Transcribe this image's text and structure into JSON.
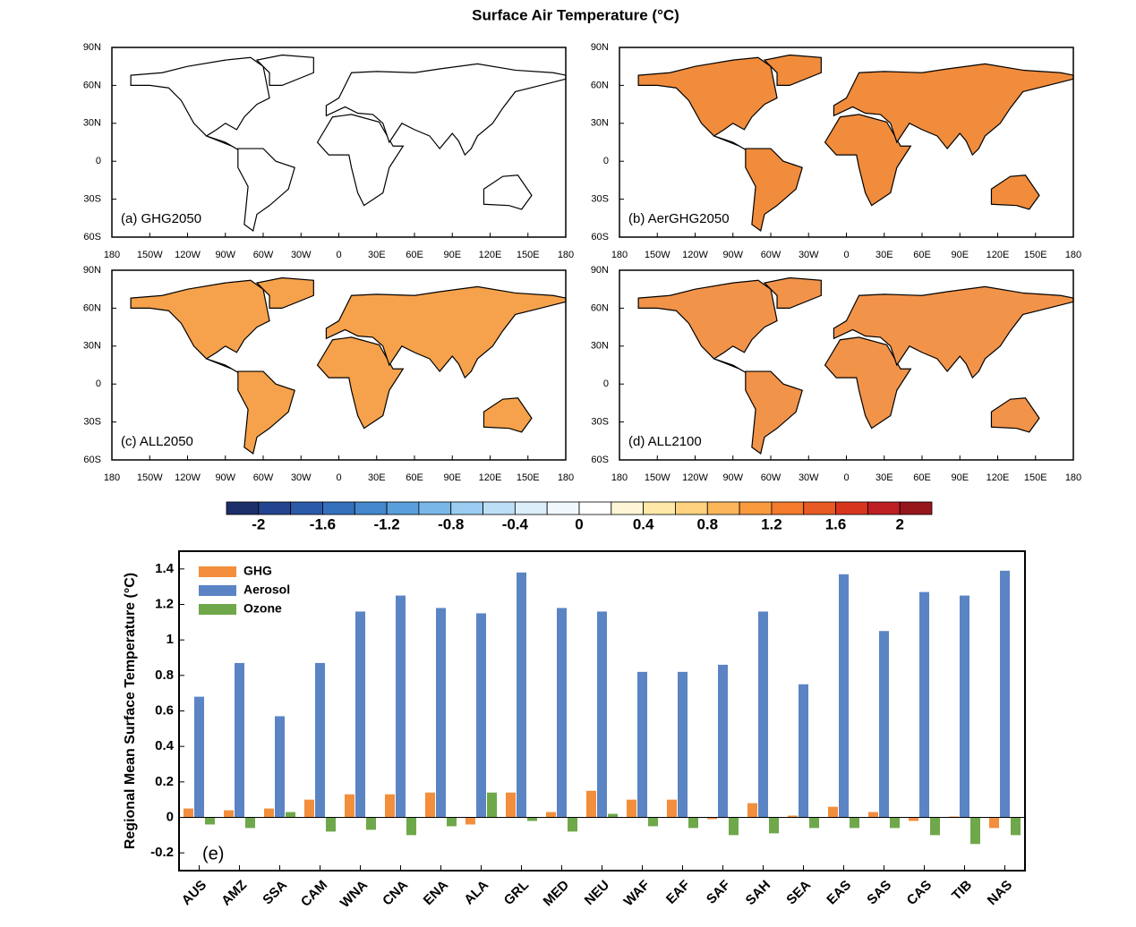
{
  "title": "Surface Air Temperature (°C)",
  "maps": {
    "lat_ticks": [
      "90N",
      "60N",
      "30N",
      "0",
      "30S",
      "60S"
    ],
    "lon_ticks": [
      "180",
      "150W",
      "120W",
      "90W",
      "60W",
      "30W",
      "0",
      "30E",
      "60E",
      "90E",
      "120E",
      "150E",
      "180"
    ],
    "panels": [
      {
        "label": "(a) GHG2050",
        "color": "#ffffff"
      },
      {
        "label": "(b) AerGHG2050",
        "color": "#f08c3c"
      },
      {
        "label": "(c) ALL2050",
        "color": "#f6a24c"
      },
      {
        "label": "(d) ALL2100",
        "color": "#f2934a"
      }
    ]
  },
  "colorbar": {
    "levels": [
      -2,
      -1.6,
      -1.2,
      -0.8,
      -0.4,
      0,
      0.4,
      0.8,
      1.2,
      1.6,
      2
    ],
    "colors": [
      "#1c2f6b",
      "#23458f",
      "#2b5aa8",
      "#3570bd",
      "#4487cc",
      "#5a9fdb",
      "#79b7e8",
      "#9acdf1",
      "#bcdff5",
      "#dbeefa",
      "#f0f8fd",
      "#ffffff",
      "#fff6d5",
      "#ffe8a8",
      "#fdd17e",
      "#fcb65a",
      "#f99a3e",
      "#f47a2c",
      "#e85a23",
      "#d8351f",
      "#bd1e22",
      "#96161c"
    ]
  },
  "chart_data": {
    "type": "bar",
    "ylabel": "Regional Mean Surface Temperature (°C)",
    "annotation": "(e)",
    "legend": "upper left",
    "categories": [
      "AUS",
      "AMZ",
      "SSA",
      "CAM",
      "WNA",
      "CNA",
      "ENA",
      "ALA",
      "GRL",
      "MED",
      "NEU",
      "WAF",
      "EAF",
      "SAF",
      "SAH",
      "SEA",
      "EAS",
      "SAS",
      "CAS",
      "TIB",
      "NAS"
    ],
    "series": [
      {
        "name": "GHG",
        "color": "#f28e3c",
        "values": [
          0.05,
          0.04,
          0.05,
          0.1,
          0.13,
          0.13,
          0.14,
          -0.04,
          0.14,
          0.03,
          0.15,
          0.1,
          0.1,
          -0.01,
          0.08,
          0.01,
          0.06,
          0.03,
          -0.02,
          0.005,
          -0.06
        ]
      },
      {
        "name": "Aerosol",
        "color": "#5b84c4",
        "values": [
          0.68,
          0.87,
          0.57,
          0.87,
          1.16,
          1.25,
          1.18,
          1.15,
          1.38,
          1.18,
          1.16,
          0.82,
          0.82,
          0.86,
          1.16,
          0.75,
          1.37,
          1.05,
          1.27,
          1.25,
          1.39
        ]
      },
      {
        "name": "Ozone",
        "color": "#6fa84a",
        "values": [
          -0.04,
          -0.06,
          0.03,
          -0.08,
          -0.07,
          -0.1,
          -0.05,
          0.14,
          -0.02,
          -0.08,
          0.02,
          -0.05,
          -0.06,
          -0.1,
          -0.09,
          -0.06,
          -0.06,
          -0.06,
          -0.1,
          -0.15,
          -0.1
        ]
      }
    ],
    "ylim": [
      -0.3,
      1.5
    ],
    "yticks": [
      -0.2,
      0,
      0.2,
      0.4,
      0.6,
      0.8,
      1,
      1.2,
      1.4
    ]
  }
}
